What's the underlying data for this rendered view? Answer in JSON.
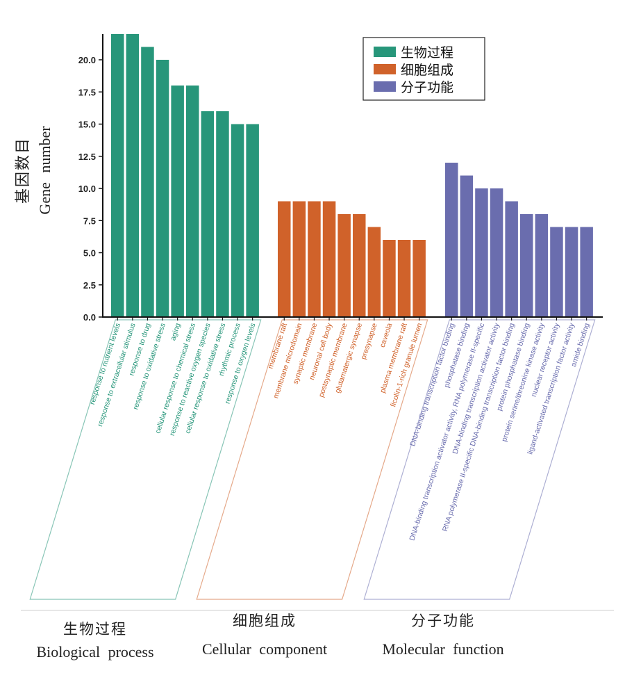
{
  "chart_data": {
    "type": "bar",
    "ylabel_cn": "基因数目",
    "ylabel_en": "Gene number",
    "ylim": [
      0,
      22
    ],
    "yticks": [
      "0.0",
      "2.5",
      "5.0",
      "7.5",
      "10.0",
      "12.5",
      "15.0",
      "17.5",
      "20.0"
    ],
    "legend_position": "top-right",
    "legend": [
      "生物过程",
      "细胞组成",
      "分子功能"
    ],
    "groups": [
      {
        "name_cn": "生物过程",
        "name_en": "Biological process",
        "color": "#27967A",
        "categories": [
          "response to nutrient levels",
          "response to extracellular stimulus",
          "response to drug",
          "response to oxidative stress",
          "aging",
          "cellular response to chemical stress",
          "response to reactive oxygen species",
          "cellular response to oxidative stress",
          "rhythmic process",
          "response to oxygen levels"
        ],
        "values": [
          22,
          22,
          21,
          20,
          18,
          18,
          16,
          16,
          15,
          15
        ]
      },
      {
        "name_cn": "细胞组成",
        "name_en": "Cellular component",
        "color": "#D0622A",
        "categories": [
          "membrane raft",
          "membrane microdomain",
          "synaptic membrane",
          "neuronal cell body",
          "postsynaptic membrane",
          "glutamatergic synapse",
          "presynapse",
          "caveola",
          "plasma membrane raft",
          "ficolin-1-rich granule lumen"
        ],
        "values": [
          9,
          9,
          9,
          9,
          8,
          8,
          7,
          6,
          6,
          6
        ]
      },
      {
        "name_cn": "分子功能",
        "name_en": "Molecular function",
        "color": "#6A6DAE",
        "categories": [
          "DNA-binding transcription factor binding",
          "phosphatase binding",
          "DNA-binding transcription activator activity, RNA polymerase II-specific",
          "DNA-binding transcription activator activity",
          "RNA polymerase II-specific DNA-binding transcription factor binding",
          "protein phosphatase binding",
          "protein serine/threonine kinase activity",
          "nuclear receptor activity",
          "ligand-activated transcription factor activity",
          "amide binding"
        ],
        "values": [
          12,
          11,
          10,
          10,
          9,
          8,
          8,
          7,
          7,
          7
        ]
      }
    ]
  }
}
